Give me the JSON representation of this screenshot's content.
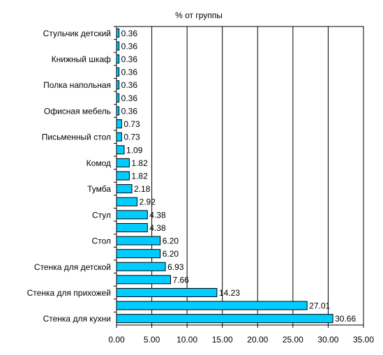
{
  "chart_data": {
    "type": "bar",
    "orientation": "horizontal",
    "title": "% от группы",
    "xlim": [
      0,
      35
    ],
    "x_ticks": [
      "0.00",
      "5.00",
      "10.00",
      "15.00",
      "20.00",
      "25.00",
      "30.00",
      "35.00"
    ],
    "grid": "vertical",
    "legend": "none",
    "bar_color": "#00CCFF",
    "categories": [
      "Стульчик детский",
      "",
      "Книжный шкаф",
      "",
      "Полка напольная",
      "",
      "Офисная мебель",
      "",
      "Письменный стол",
      "",
      "Комод",
      "",
      "Тумба",
      "",
      "Стул",
      "",
      "Стол",
      "",
      "Стенка для детской",
      "",
      "Стенка для прихожей",
      "",
      "Стенка для кухни"
    ],
    "values": [
      0.36,
      0.36,
      0.36,
      0.36,
      0.36,
      0.36,
      0.36,
      0.73,
      0.73,
      1.09,
      1.82,
      1.82,
      2.18,
      2.92,
      4.38,
      4.38,
      6.2,
      6.2,
      6.93,
      7.66,
      14.23,
      27.01,
      30.66
    ],
    "value_labels": [
      "0.36",
      "0.36",
      "0.36",
      "0.36",
      "0.36",
      "0.36",
      "0.36",
      "0.73",
      "0.73",
      "1.09",
      "1.82",
      "1.82",
      "2.18",
      "2.92",
      "4.38",
      "4.38",
      "6.20",
      "6.20",
      "6.93",
      "7.66",
      "14.23",
      "27.01",
      "30.66"
    ]
  }
}
